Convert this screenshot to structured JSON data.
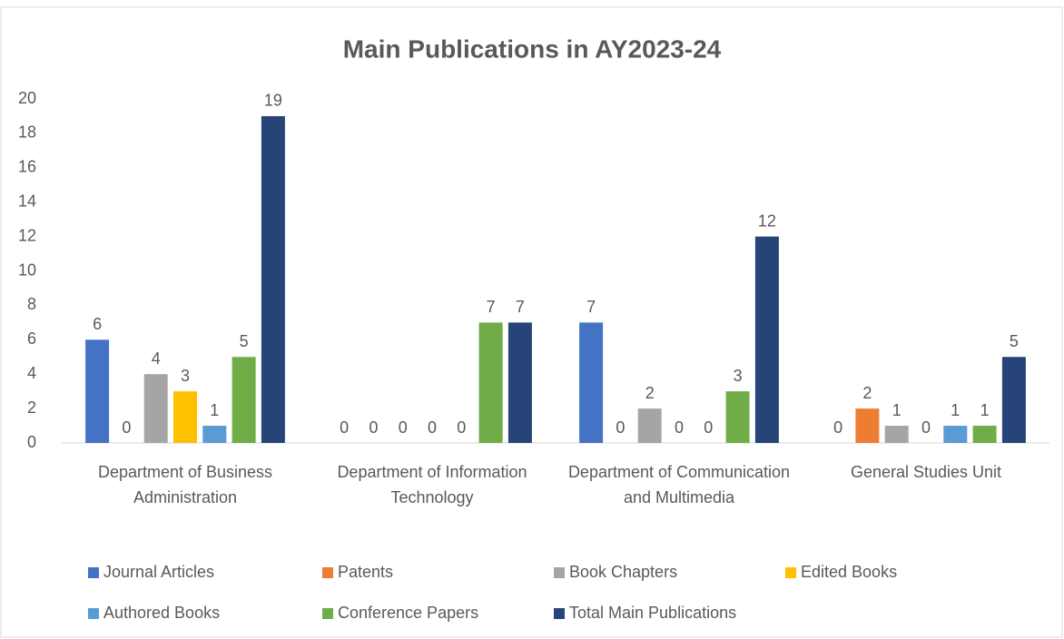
{
  "chart_data": {
    "type": "bar",
    "title": "Main Publications in AY2023-24",
    "categories": [
      "Department of Business Administration",
      "Department of Information Technology",
      "Department of Communication and Multimedia",
      "General Studies Unit"
    ],
    "series": [
      {
        "name": "Journal Articles",
        "color": "#4472c4",
        "values": [
          6,
          0,
          7,
          0
        ]
      },
      {
        "name": "Patents",
        "color": "#ed7d31",
        "values": [
          0,
          0,
          0,
          2
        ]
      },
      {
        "name": "Book Chapters",
        "color": "#a5a5a5",
        "values": [
          4,
          0,
          2,
          1
        ]
      },
      {
        "name": "Edited Books",
        "color": "#ffc000",
        "values": [
          3,
          0,
          0,
          0
        ]
      },
      {
        "name": "Authored Books",
        "color": "#5b9bd5",
        "values": [
          1,
          0,
          0,
          1
        ]
      },
      {
        "name": "Conference Papers",
        "color": "#70ad47",
        "values": [
          5,
          7,
          3,
          1
        ]
      },
      {
        "name": "Total Main Publications",
        "color": "#264478",
        "values": [
          19,
          7,
          12,
          5
        ]
      }
    ],
    "ylim": [
      0,
      20
    ],
    "yticks": [
      0,
      2,
      4,
      6,
      8,
      10,
      12,
      14,
      16,
      18,
      20
    ],
    "grid": false,
    "legend": "bottom"
  }
}
